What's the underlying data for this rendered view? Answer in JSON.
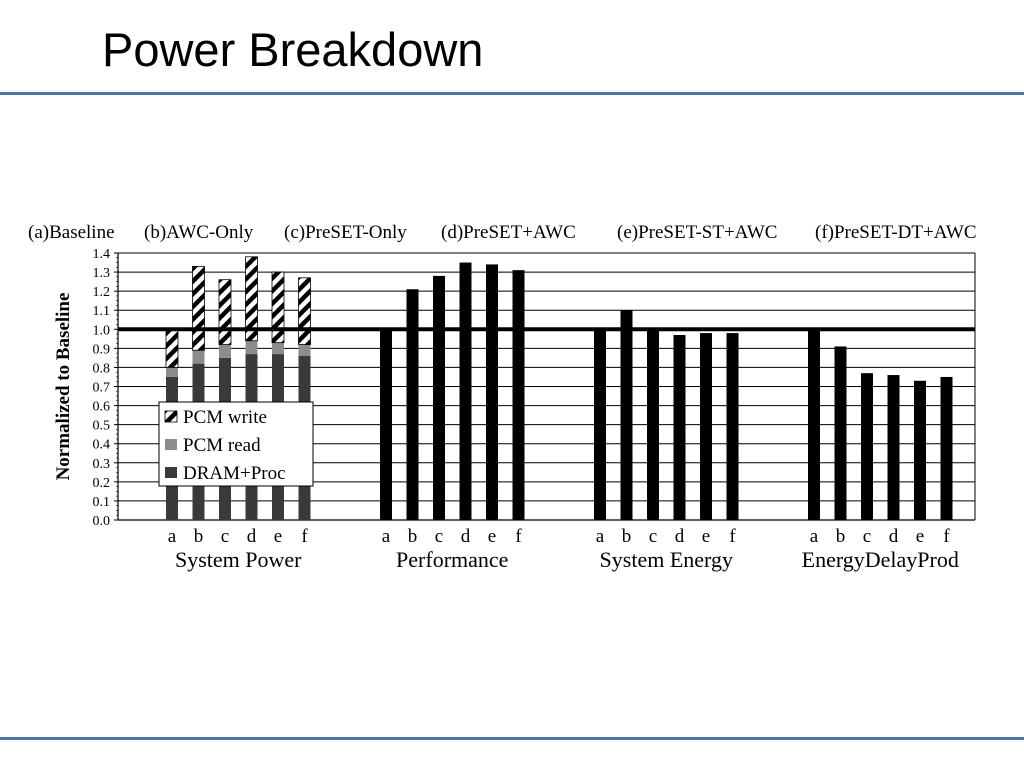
{
  "slide": {
    "title": "Power Breakdown"
  },
  "chart_data": {
    "type": "bar",
    "configs": [
      "(a)Baseline",
      "(b)AWC-Only",
      "(c)PreSET-Only",
      "(d)PreSET+AWC",
      "(e)PreSET-ST+AWC",
      "(f)PreSET-DT+AWC"
    ],
    "ylabel": "Normalized to Baseline",
    "ylim": [
      0,
      1.4
    ],
    "yticks": [
      "0.0",
      "0.1",
      "0.2",
      "0.3",
      "0.4",
      "0.5",
      "0.6",
      "0.7",
      "0.8",
      "0.9",
      "1.0",
      "1.1",
      "1.2",
      "1.3",
      "1.4"
    ],
    "reference_line": 1.0,
    "grid": true,
    "legend": {
      "placement": "inside-lower-left",
      "entries": [
        {
          "name": "PCM write",
          "style": "hatched"
        },
        {
          "name": "PCM read",
          "color": "#8c8c8c"
        },
        {
          "name": "DRAM+Proc",
          "color": "#3a3a3a"
        }
      ]
    },
    "groups": [
      {
        "label": "System Power",
        "stacked": true,
        "categories": [
          "a",
          "b",
          "c",
          "d",
          "e",
          "f"
        ],
        "series": [
          {
            "name": "DRAM+Proc",
            "values": [
              0.75,
              0.82,
              0.85,
              0.87,
              0.87,
              0.86
            ]
          },
          {
            "name": "PCM read",
            "values": [
              0.05,
              0.07,
              0.07,
              0.07,
              0.06,
              0.06
            ]
          },
          {
            "name": "PCM write",
            "values": [
              0.2,
              0.44,
              0.34,
              0.44,
              0.37,
              0.35
            ]
          }
        ]
      },
      {
        "label": "Performance",
        "categories": [
          "a",
          "b",
          "c",
          "d",
          "e",
          "f"
        ],
        "values": [
          1.0,
          1.21,
          1.28,
          1.35,
          1.34,
          1.31
        ]
      },
      {
        "label": "System Energy",
        "categories": [
          "a",
          "b",
          "c",
          "d",
          "e",
          "f"
        ],
        "values": [
          1.0,
          1.1,
          1.0,
          0.97,
          0.98,
          0.98
        ]
      },
      {
        "label": "EnergyDelayProd",
        "categories": [
          "a",
          "b",
          "c",
          "d",
          "e",
          "f"
        ],
        "values": [
          1.0,
          0.91,
          0.77,
          0.76,
          0.73,
          0.75
        ]
      }
    ]
  }
}
